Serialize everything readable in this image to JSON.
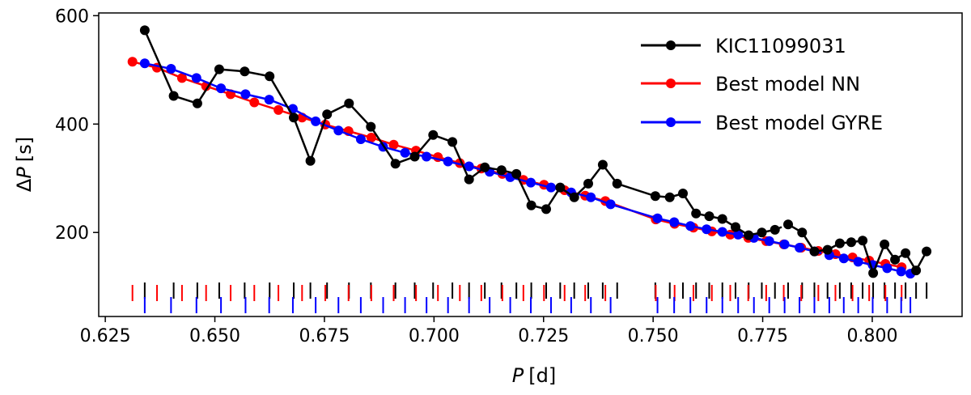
{
  "chart_data": {
    "type": "line",
    "title": "",
    "xlabel_italic": "P",
    "xlabel_unit": "[d]",
    "ylabel_prefix": "Δ",
    "ylabel_italic": "P",
    "ylabel_unit": "[s]",
    "xlim": [
      0.6235,
      0.8205
    ],
    "ylim": [
      45,
      605
    ],
    "xticks": [
      0.625,
      0.65,
      0.675,
      0.7,
      0.725,
      0.75,
      0.775,
      0.8
    ],
    "xtick_labels": [
      "0.625",
      "0.650",
      "0.675",
      "0.700",
      "0.725",
      "0.750",
      "0.775",
      "0.800"
    ],
    "yticks": [
      200,
      400,
      600
    ],
    "ytick_labels": [
      "200",
      "400",
      "600"
    ],
    "legend_position": "top-right",
    "series": [
      {
        "name": "KIC11099031",
        "color": "#000000",
        "gap_after_index": 36,
        "x": [
          0.634,
          0.6406,
          0.646,
          0.651,
          0.6568,
          0.6625,
          0.668,
          0.6718,
          0.6756,
          0.6806,
          0.6856,
          0.6912,
          0.6956,
          0.6998,
          0.7042,
          0.708,
          0.7116,
          0.7154,
          0.7188,
          0.7222,
          0.7256,
          0.7288,
          0.732,
          0.7352,
          0.7385,
          0.7418,
          0.7505,
          0.7538,
          0.7568,
          0.7598,
          0.7628,
          0.7658,
          0.7688,
          0.7718,
          0.7748,
          0.7778,
          0.7808,
          0.784,
          0.7868,
          0.7898,
          0.7926,
          0.7952,
          0.7978,
          0.8002,
          0.8028,
          0.8052,
          0.8076,
          0.81,
          0.8124
        ],
        "y": [
          573,
          452,
          438,
          501,
          497,
          488,
          412,
          332,
          418,
          438,
          395,
          327,
          340,
          380,
          367,
          298,
          320,
          315,
          308,
          250,
          243,
          283,
          265,
          290,
          325,
          290,
          267,
          265,
          272,
          235,
          230,
          225,
          210,
          195,
          200,
          205,
          215,
          200,
          165,
          168,
          180,
          182,
          185,
          125,
          178,
          150,
          162,
          130,
          165
        ]
      },
      {
        "name": "Best model NN",
        "color": "#ff0000",
        "gap_after_index": 33,
        "x": [
          0.6312,
          0.6368,
          0.6425,
          0.648,
          0.6536,
          0.659,
          0.6645,
          0.6699,
          0.6752,
          0.6805,
          0.6857,
          0.6908,
          0.6959,
          0.7009,
          0.7059,
          0.7108,
          0.7156,
          0.7204,
          0.7251,
          0.7298,
          0.7345,
          0.7391,
          0.7506,
          0.7549,
          0.7592,
          0.7634,
          0.7676,
          0.7717,
          0.7758,
          0.7798,
          0.7838,
          0.7877,
          0.7916,
          0.7955,
          0.7993,
          0.803,
          0.8067
        ],
        "y": [
          515,
          504,
          485,
          470,
          455,
          440,
          426,
          412,
          399,
          387,
          375,
          362,
          351,
          339,
          328,
          318,
          308,
          297,
          288,
          278,
          268,
          258,
          224,
          216,
          209,
          202,
          196,
          190,
          184,
          178,
          172,
          166,
          160,
          154,
          148,
          142,
          136
        ]
      },
      {
        "name": "Best model GYRE",
        "color": "#0000ff",
        "gap_after_index": 33,
        "x": [
          0.634,
          0.64,
          0.6458,
          0.6514,
          0.657,
          0.6624,
          0.6678,
          0.673,
          0.6782,
          0.6833,
          0.6884,
          0.6934,
          0.6983,
          0.7032,
          0.708,
          0.7127,
          0.7174,
          0.7221,
          0.7267,
          0.7313,
          0.7358,
          0.7403,
          0.751,
          0.7548,
          0.7585,
          0.7622,
          0.7658,
          0.7694,
          0.773,
          0.7765,
          0.78,
          0.7834,
          0.7868,
          0.7902,
          0.7935,
          0.7968,
          0.8001,
          0.8034,
          0.8066,
          0.8087
        ],
        "y": [
          512,
          502,
          485,
          466,
          455,
          445,
          428,
          405,
          388,
          372,
          358,
          347,
          340,
          331,
          322,
          312,
          302,
          292,
          283,
          274,
          265,
          252,
          226,
          219,
          212,
          206,
          201,
          196,
          190,
          184,
          178,
          172,
          165,
          158,
          152,
          146,
          140,
          134,
          128,
          124
        ]
      }
    ]
  }
}
